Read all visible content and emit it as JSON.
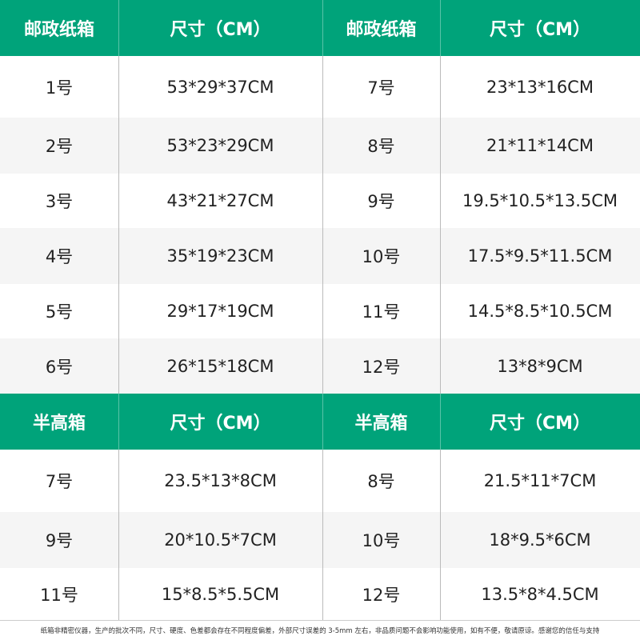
{
  "colors": {
    "header": "#00a37a",
    "alt_row": "#f5f5f5"
  },
  "table1": {
    "headers": [
      "邮政纸箱",
      "尺寸（CM）",
      "邮政纸箱",
      "尺寸（CM）"
    ],
    "rows": [
      [
        "1号",
        "53*29*37CM",
        "7号",
        "23*13*16CM"
      ],
      [
        "2号",
        "53*23*29CM",
        "8号",
        "21*11*14CM"
      ],
      [
        "3号",
        "43*21*27CM",
        "9号",
        "19.5*10.5*13.5CM"
      ],
      [
        "4号",
        "35*19*23CM",
        "10号",
        "17.5*9.5*11.5CM"
      ],
      [
        "5号",
        "29*17*19CM",
        "11号",
        "14.5*8.5*10.5CM"
      ],
      [
        "6号",
        "26*15*18CM",
        "12号",
        "13*8*9CM"
      ]
    ]
  },
  "table2": {
    "headers": [
      "半高箱",
      "尺寸（CM）",
      "半高箱",
      "尺寸（CM）"
    ],
    "rows": [
      [
        "7号",
        "23.5*13*8CM",
        "8号",
        "21.5*11*7CM"
      ],
      [
        "9号",
        "20*10.5*7CM",
        "10号",
        "18*9.5*6CM"
      ],
      [
        "11号",
        "15*8.5*5.5CM",
        "12号",
        "13.5*8*4.5CM"
      ]
    ]
  },
  "footer": "纸箱非精密仪器，生产的批次不同，尺寸、硬度、色差都会存在不同程度偏差，外部尺寸误差的 3-5mm 左右，非品质问题不会影响功能使用，如有不便，敬请原谅。感谢您的信任与支持"
}
